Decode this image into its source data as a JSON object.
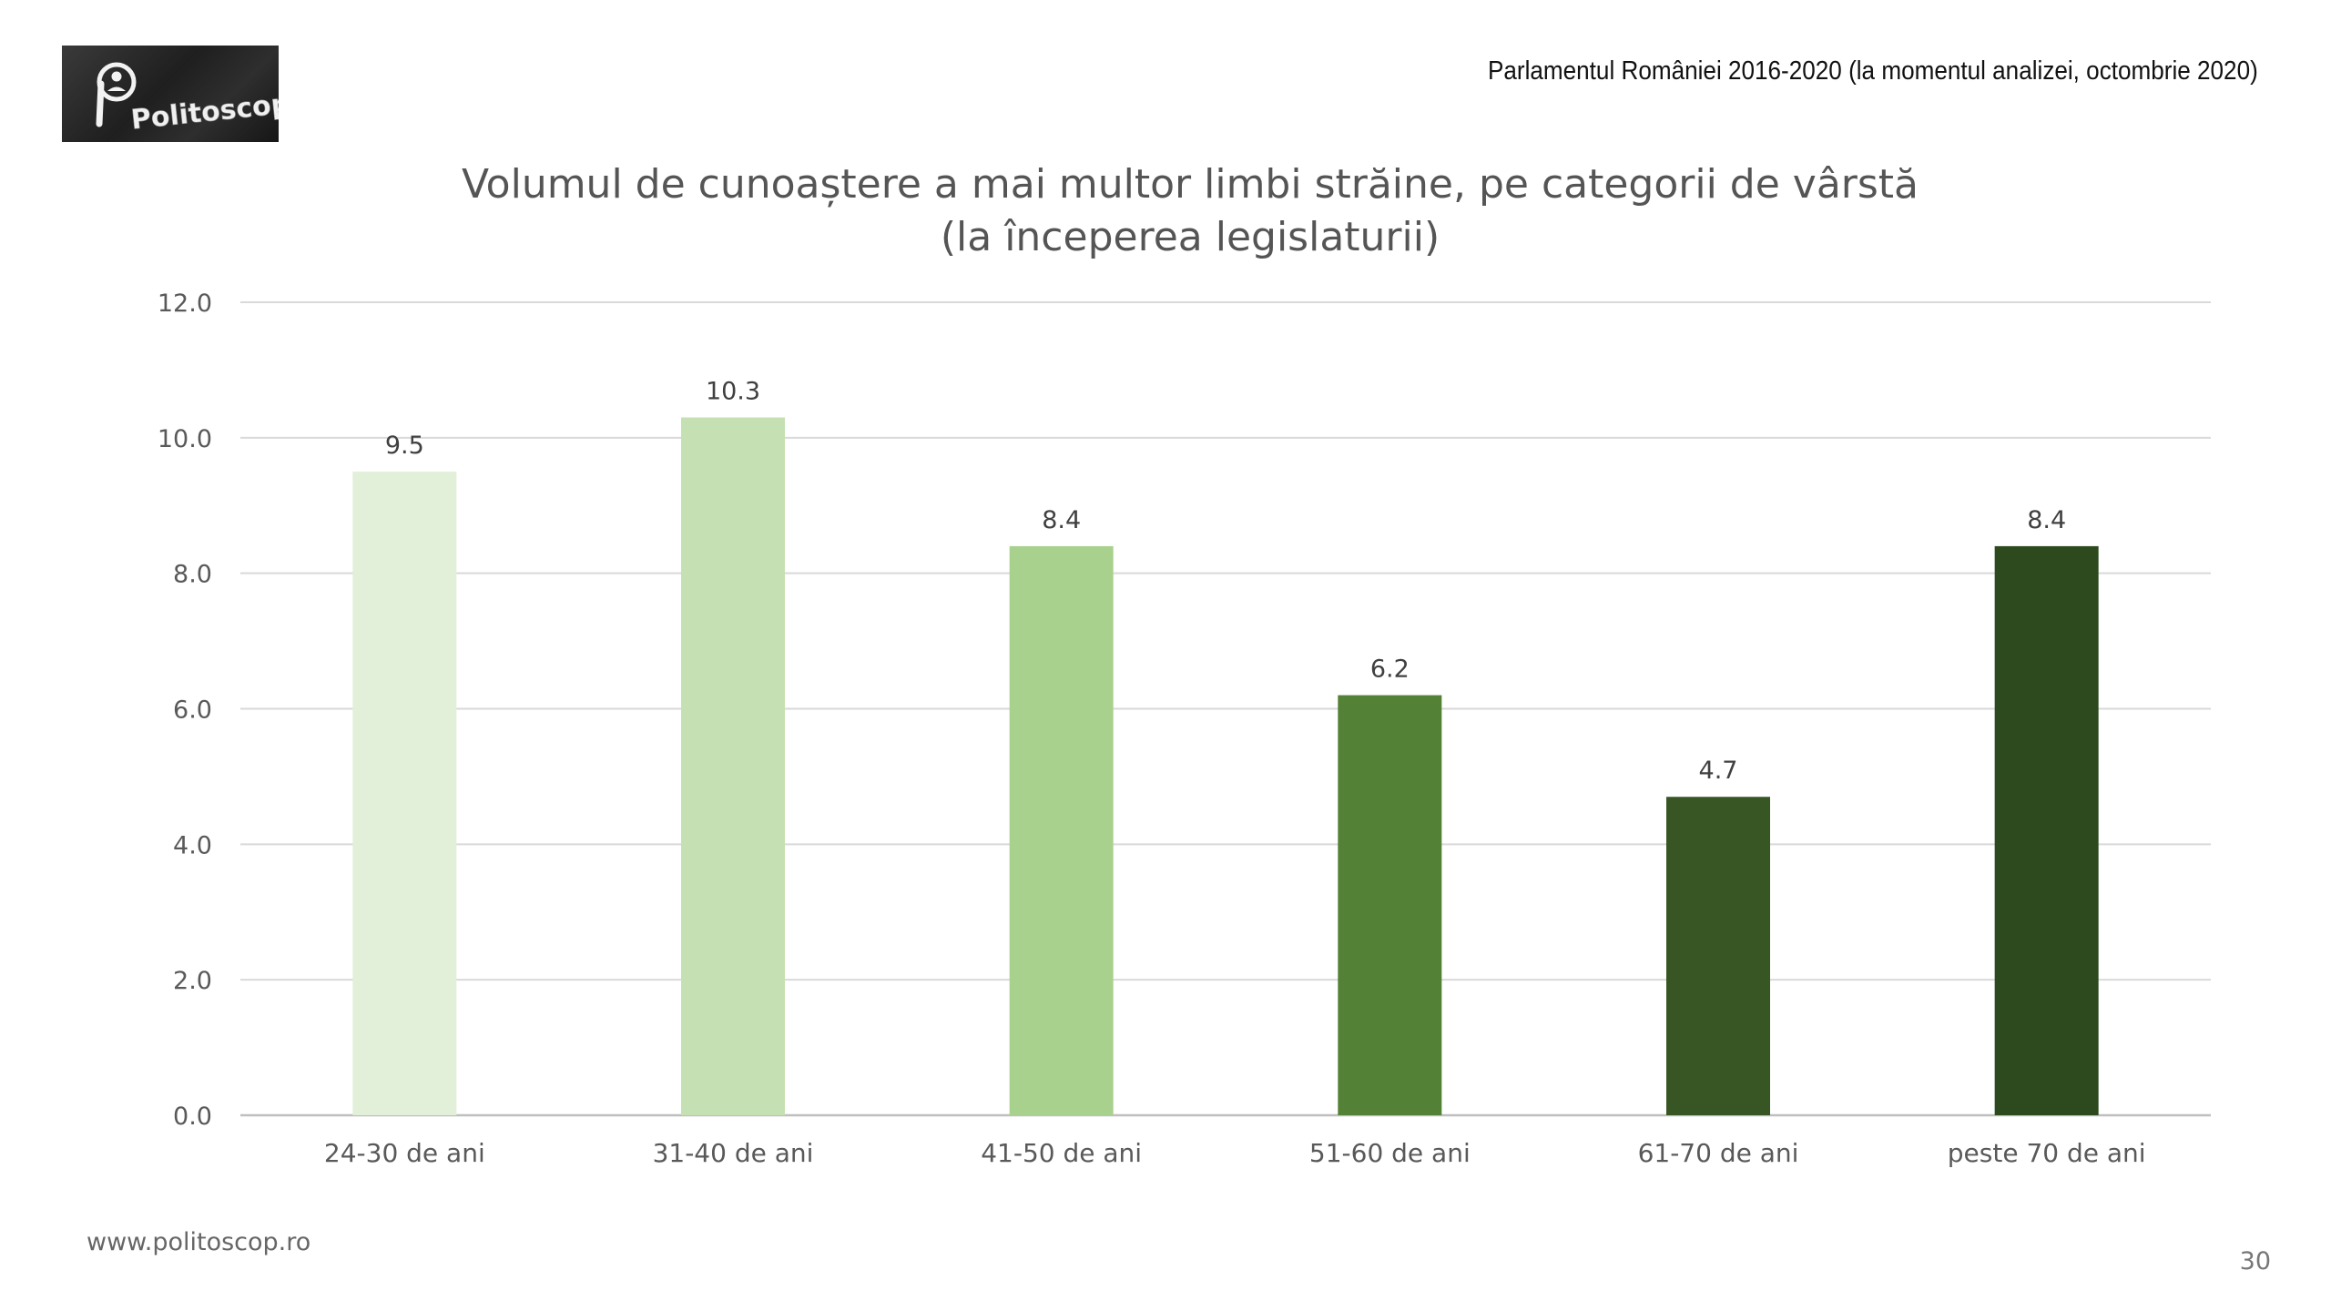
{
  "logo": {
    "text": "Politoscop"
  },
  "header": {
    "note": "Parlamentul României 2016-2020 (la momentul analizei, octombrie 2020)"
  },
  "footer": {
    "url": "www.politoscop.ro",
    "page_number": "30"
  },
  "chart_data": {
    "type": "bar",
    "title": "Volumul de cunoaștere a mai multor limbi străine, pe categorii de vârstă",
    "subtitle": "(la începerea legislaturii)",
    "categories": [
      "24-30 de ani",
      "31-40 de ani",
      "41-50 de ani",
      "51-60 de ani",
      "61-70 de ani",
      "peste 70 de ani"
    ],
    "values": [
      9.5,
      10.3,
      8.4,
      6.2,
      4.7,
      8.4
    ],
    "value_labels": [
      "9.5",
      "10.3",
      "8.4",
      "6.2",
      "4.7",
      "8.4"
    ],
    "bar_colors": [
      "#e2efd9",
      "#c5e0b3",
      "#a8d18d",
      "#538135",
      "#375623",
      "#2d4a1e"
    ],
    "ylim": [
      0,
      12
    ],
    "yticks": [
      "0.0",
      "2.0",
      "4.0",
      "6.0",
      "8.0",
      "10.0",
      "12.0"
    ],
    "grid": true,
    "legend": "none"
  }
}
